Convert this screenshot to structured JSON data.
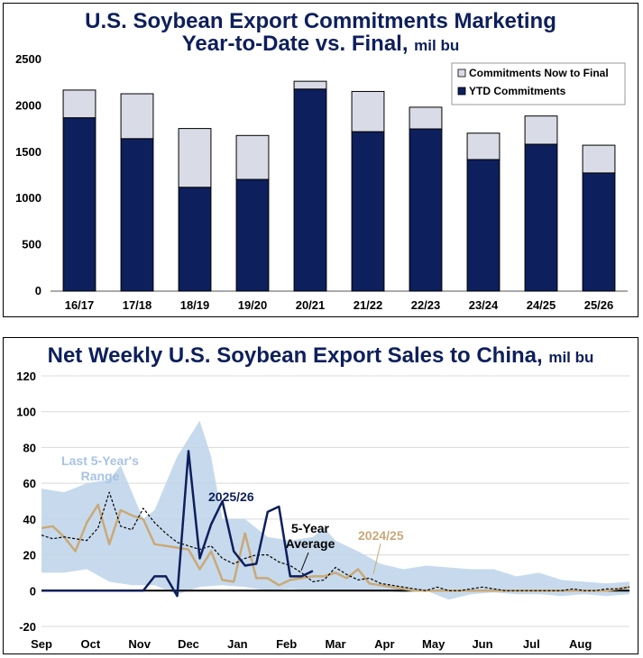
{
  "chart_data": [
    {
      "type": "bar",
      "title_line1": "U.S. Soybean Export Commitments Marketing",
      "title_line2": "Year-to-Date vs. Final,",
      "title_unit": "mil bu",
      "categories": [
        "16/17",
        "17/18",
        "18/19",
        "19/20",
        "20/21",
        "21/22",
        "22/23",
        "23/24",
        "24/25",
        "25/26"
      ],
      "series": [
        {
          "name": "YTD Commitments",
          "color": "#0d1f5c",
          "values": [
            1870,
            1645,
            1120,
            1205,
            2180,
            1720,
            1750,
            1420,
            1585,
            1275
          ]
        },
        {
          "name": "Commitments Now to Final",
          "color": "#d9dce6",
          "values": [
            300,
            485,
            635,
            475,
            85,
            435,
            235,
            285,
            305,
            300
          ]
        }
      ],
      "totals": [
        2170,
        2130,
        1755,
        1680,
        2265,
        2155,
        1985,
        1705,
        1890,
        1575
      ],
      "yticks": [
        "0",
        "500",
        "1000",
        "1500",
        "2000",
        "2500"
      ],
      "ylim": [
        0,
        2500
      ],
      "xlabel": "",
      "ylabel": "",
      "legend": [
        {
          "label": "Commitments Now to Final",
          "color": "#d9dce6"
        },
        {
          "label": "YTD Commitments",
          "color": "#0d1f5c"
        }
      ],
      "legend_position": "top-right"
    },
    {
      "type": "line",
      "title": "Net Weekly U.S. Soybean Export Sales to China,",
      "title_unit": "mil bu",
      "months": [
        "Sep",
        "Oct",
        "Nov",
        "Dec",
        "Jan",
        "Feb",
        "Mar",
        "Apr",
        "May",
        "Jun",
        "Jul",
        "Aug"
      ],
      "yticks": [
        "-20",
        "0",
        "20",
        "40",
        "60",
        "80",
        "100",
        "120"
      ],
      "ylim": [
        -20,
        120
      ],
      "xlim": [
        0,
        52
      ],
      "band": {
        "name": "Last 5-Year's Range",
        "color": "#bdd3ea",
        "upper": [
          [
            0,
            57
          ],
          [
            2,
            55
          ],
          [
            4,
            60
          ],
          [
            6,
            62
          ],
          [
            7,
            70
          ],
          [
            9,
            40
          ],
          [
            10,
            45
          ],
          [
            12,
            75
          ],
          [
            13,
            85
          ],
          [
            14,
            95
          ],
          [
            15,
            75
          ],
          [
            16,
            40
          ],
          [
            18,
            40
          ],
          [
            20,
            30
          ],
          [
            22,
            28
          ],
          [
            24,
            30
          ],
          [
            25,
            35
          ],
          [
            26,
            28
          ],
          [
            28,
            22
          ],
          [
            30,
            15
          ],
          [
            32,
            12
          ],
          [
            34,
            14
          ],
          [
            36,
            13
          ],
          [
            38,
            12
          ],
          [
            40,
            12
          ],
          [
            42,
            8
          ],
          [
            44,
            10
          ],
          [
            46,
            6
          ],
          [
            48,
            5
          ],
          [
            50,
            4
          ],
          [
            52,
            5
          ]
        ],
        "lower": [
          [
            0,
            10
          ],
          [
            2,
            10
          ],
          [
            4,
            12
          ],
          [
            6,
            5
          ],
          [
            8,
            3
          ],
          [
            10,
            3
          ],
          [
            12,
            -2
          ],
          [
            14,
            2
          ],
          [
            16,
            3
          ],
          [
            18,
            2
          ],
          [
            20,
            0
          ],
          [
            22,
            1
          ],
          [
            24,
            0
          ],
          [
            26,
            0
          ],
          [
            28,
            0
          ],
          [
            30,
            0
          ],
          [
            32,
            -1
          ],
          [
            34,
            0
          ],
          [
            36,
            -5
          ],
          [
            38,
            -2
          ],
          [
            40,
            -1
          ],
          [
            42,
            -2
          ],
          [
            44,
            -2
          ],
          [
            46,
            -3
          ],
          [
            48,
            -2
          ],
          [
            50,
            -3
          ],
          [
            52,
            -2
          ]
        ]
      },
      "series": [
        {
          "name": "2025/26",
          "color": "#0d1f5c",
          "dash": "",
          "points": [
            [
              0,
              0
            ],
            [
              1,
              0
            ],
            [
              2,
              0
            ],
            [
              3,
              0
            ],
            [
              4,
              0
            ],
            [
              5,
              0
            ],
            [
              6,
              0
            ],
            [
              7,
              0
            ],
            [
              8,
              0
            ],
            [
              9,
              0
            ],
            [
              10,
              8
            ],
            [
              11,
              8
            ],
            [
              12,
              -3
            ],
            [
              13,
              78
            ],
            [
              14,
              18
            ],
            [
              15,
              37
            ],
            [
              16,
              50
            ],
            [
              17,
              22
            ],
            [
              18,
              14
            ],
            [
              19,
              15
            ],
            [
              20,
              44
            ],
            [
              21,
              47
            ],
            [
              22,
              8
            ],
            [
              23,
              8
            ],
            [
              24,
              11
            ]
          ]
        },
        {
          "name": "5-Year Average",
          "color": "#000000",
          "dash": "3,2",
          "points": [
            [
              0,
              31
            ],
            [
              1,
              29
            ],
            [
              2,
              30
            ],
            [
              3,
              29
            ],
            [
              4,
              28
            ],
            [
              5,
              35
            ],
            [
              6,
              55
            ],
            [
              7,
              36
            ],
            [
              8,
              34
            ],
            [
              9,
              46
            ],
            [
              10,
              38
            ],
            [
              11,
              32
            ],
            [
              12,
              27
            ],
            [
              13,
              25
            ],
            [
              14,
              23
            ],
            [
              15,
              25
            ],
            [
              16,
              18
            ],
            [
              17,
              15
            ],
            [
              18,
              18
            ],
            [
              19,
              20
            ],
            [
              20,
              20
            ],
            [
              21,
              16
            ],
            [
              22,
              14
            ],
            [
              23,
              10
            ],
            [
              24,
              5
            ],
            [
              25,
              6
            ],
            [
              26,
              13
            ],
            [
              27,
              9
            ],
            [
              28,
              6
            ],
            [
              29,
              7
            ],
            [
              30,
              4
            ],
            [
              31,
              3
            ],
            [
              32,
              2
            ],
            [
              33,
              1
            ],
            [
              34,
              0
            ],
            [
              35,
              2
            ],
            [
              36,
              0
            ],
            [
              37,
              0
            ],
            [
              38,
              1
            ],
            [
              39,
              2
            ],
            [
              40,
              1
            ],
            [
              41,
              0
            ],
            [
              42,
              0
            ],
            [
              43,
              0
            ],
            [
              44,
              0
            ],
            [
              45,
              0
            ],
            [
              46,
              0
            ],
            [
              47,
              1
            ],
            [
              48,
              0
            ],
            [
              49,
              0
            ],
            [
              50,
              1
            ],
            [
              51,
              1
            ],
            [
              52,
              2
            ]
          ]
        },
        {
          "name": "2024/25",
          "color": "#c9a978",
          "dash": "",
          "points": [
            [
              0,
              35
            ],
            [
              1,
              36
            ],
            [
              2,
              30
            ],
            [
              3,
              22
            ],
            [
              4,
              38
            ],
            [
              5,
              48
            ],
            [
              6,
              26
            ],
            [
              7,
              45
            ],
            [
              8,
              42
            ],
            [
              9,
              40
            ],
            [
              10,
              26
            ],
            [
              11,
              25
            ],
            [
              12,
              24
            ],
            [
              13,
              23
            ],
            [
              14,
              12
            ],
            [
              15,
              22
            ],
            [
              16,
              6
            ],
            [
              17,
              5
            ],
            [
              18,
              32
            ],
            [
              19,
              7
            ],
            [
              20,
              7
            ],
            [
              21,
              3
            ],
            [
              22,
              6
            ],
            [
              23,
              7
            ],
            [
              24,
              8
            ],
            [
              25,
              8
            ],
            [
              26,
              10
            ],
            [
              27,
              7
            ],
            [
              28,
              12
            ],
            [
              29,
              4
            ],
            [
              30,
              3
            ],
            [
              31,
              2
            ],
            [
              32,
              1
            ],
            [
              33,
              0
            ],
            [
              34,
              0
            ],
            [
              35,
              0
            ],
            [
              36,
              0
            ],
            [
              37,
              0
            ],
            [
              38,
              0
            ],
            [
              39,
              0
            ],
            [
              40,
              0
            ],
            [
              41,
              0
            ],
            [
              42,
              0
            ],
            [
              43,
              0
            ],
            [
              44,
              0
            ],
            [
              45,
              0
            ],
            [
              46,
              0
            ],
            [
              47,
              0
            ],
            [
              48,
              0
            ],
            [
              49,
              0
            ],
            [
              50,
              0
            ],
            [
              51,
              1
            ],
            [
              52,
              2
            ]
          ]
        }
      ],
      "annotations": {
        "range": "Last 5-Year's\nRange",
        "range_line1": "Last 5-Year's",
        "range_line2": "Range",
        "current": "2025/26",
        "avg_line1": "5-Year",
        "avg_line2": "Average",
        "prev": "2024/25"
      }
    }
  ]
}
